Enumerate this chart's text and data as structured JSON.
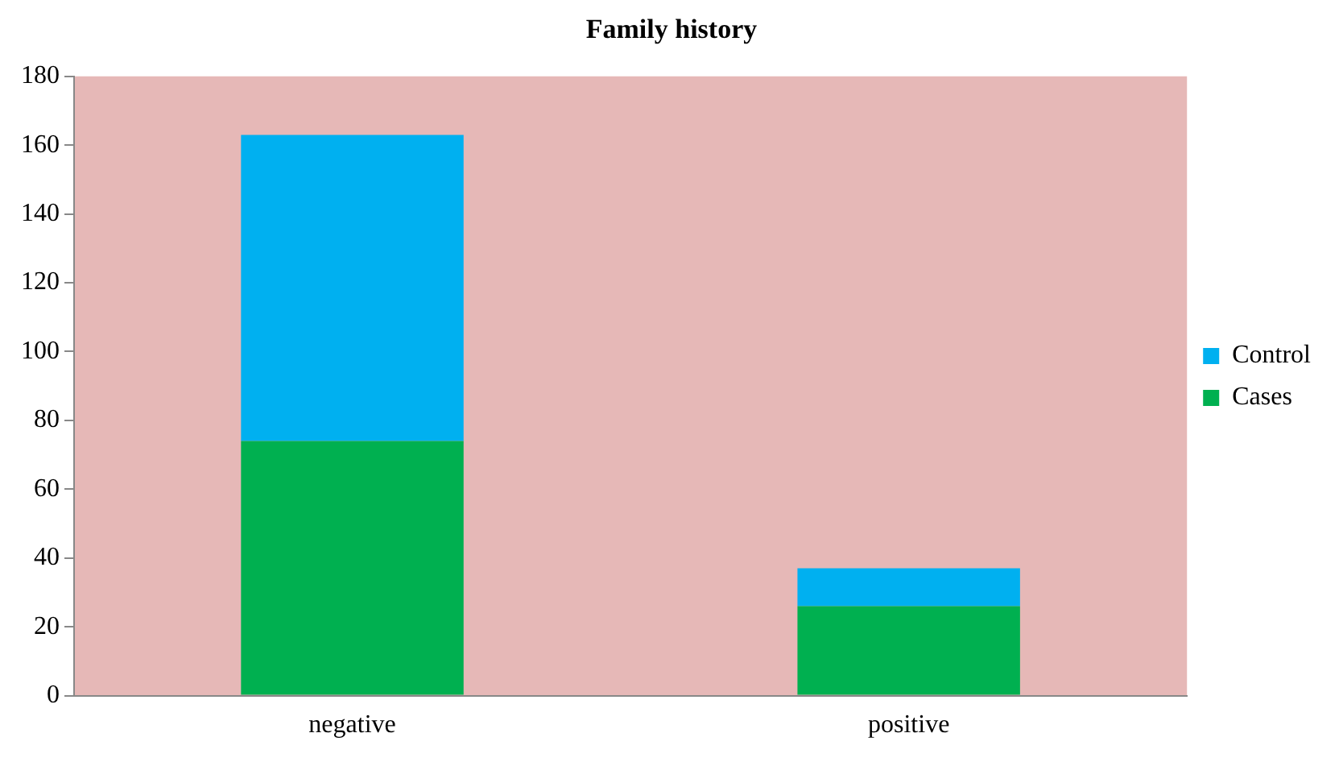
{
  "chart_data": {
    "type": "bar",
    "title": "Family history",
    "categories": [
      "negative",
      "positive"
    ],
    "stacked": true,
    "series": [
      {
        "name": "Cases",
        "color": "#00b050",
        "values": [
          74,
          26
        ]
      },
      {
        "name": "Control",
        "color": "#00b0f0",
        "values": [
          89,
          11
        ]
      }
    ],
    "ylim": [
      0,
      180
    ],
    "yticks": [
      0,
      20,
      40,
      60,
      80,
      100,
      120,
      140,
      160,
      180
    ],
    "grid": false,
    "legend": "right"
  }
}
